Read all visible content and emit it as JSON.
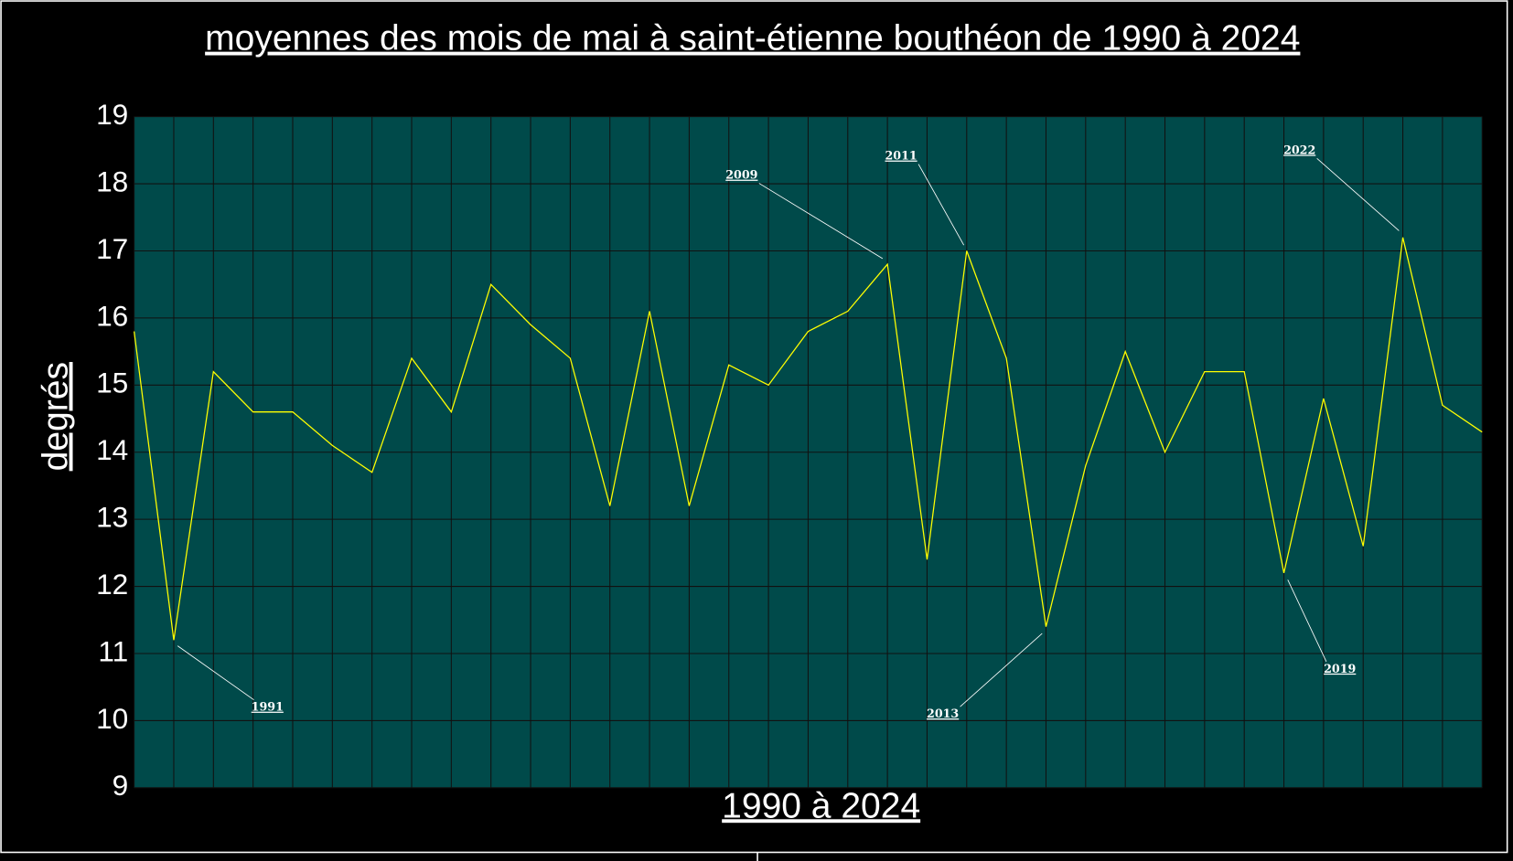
{
  "chart_data": {
    "type": "line",
    "title": "moyennes des mois de mai à saint-étienne bouthéon de 1990 à 2024",
    "xlabel": "1990  à  2024",
    "ylabel": "degrés",
    "x": [
      1990,
      1991,
      1992,
      1993,
      1994,
      1995,
      1996,
      1997,
      1998,
      1999,
      2000,
      2001,
      2002,
      2003,
      2004,
      2005,
      2006,
      2007,
      2008,
      2009,
      2010,
      2011,
      2012,
      2013,
      2014,
      2015,
      2016,
      2017,
      2018,
      2019,
      2020,
      2021,
      2022,
      2023,
      2024
    ],
    "values": [
      15.8,
      11.2,
      15.2,
      14.6,
      14.6,
      14.1,
      13.7,
      15.4,
      14.6,
      16.5,
      15.9,
      15.4,
      13.2,
      16.1,
      13.2,
      15.3,
      15.0,
      15.8,
      16.1,
      16.8,
      12.4,
      17.0,
      15.4,
      11.4,
      13.8,
      15.5,
      14.0,
      15.2,
      15.2,
      12.2,
      14.8,
      12.6,
      17.2,
      14.7,
      14.3
    ],
    "color": "#ffff00",
    "background": "#004a4a",
    "xlim": [
      1990,
      2024
    ],
    "ylim": [
      9,
      19
    ],
    "yticks": [
      9,
      10,
      11,
      12,
      13,
      14,
      15,
      16,
      17,
      18,
      19
    ],
    "grid": true,
    "annotations": [
      {
        "label": "1991",
        "x": 1991
      },
      {
        "label": "2009",
        "x": 2009
      },
      {
        "label": "2011",
        "x": 2011
      },
      {
        "label": "2013",
        "x": 2013
      },
      {
        "label": "2019",
        "x": 2019
      },
      {
        "label": "2022",
        "x": 2022
      }
    ]
  }
}
